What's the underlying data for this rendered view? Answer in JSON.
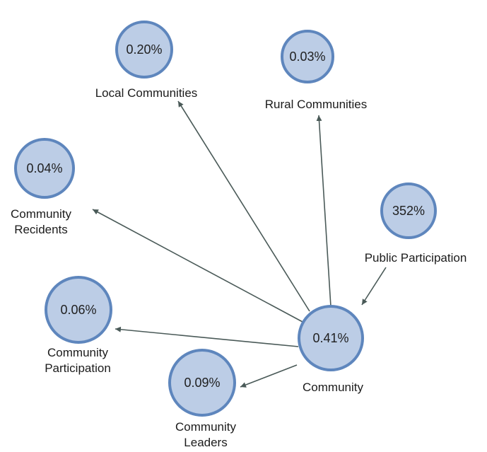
{
  "nodes": [
    {
      "id": "local-communities",
      "value": "0.20%",
      "label": [
        "Local Communities"
      ]
    },
    {
      "id": "rural-communities",
      "value": "0.03%",
      "label": [
        "Rural Communities"
      ]
    },
    {
      "id": "community-recidents",
      "value": "0.04%",
      "label": [
        "Community",
        "Recidents"
      ]
    },
    {
      "id": "public-participation",
      "value": "352%",
      "label": [
        "Public Participation"
      ]
    },
    {
      "id": "community-participation",
      "value": "0.06%",
      "label": [
        "Community",
        "Participation"
      ]
    },
    {
      "id": "community",
      "value": "0.41%",
      "label": [
        "Community"
      ]
    },
    {
      "id": "community-leaders",
      "value": "0.09%",
      "label": [
        "Community",
        "Leaders"
      ]
    }
  ],
  "edges": [
    {
      "from": "community",
      "to": "local-communities"
    },
    {
      "from": "community",
      "to": "rural-communities"
    },
    {
      "from": "community",
      "to": "community-recidents"
    },
    {
      "from": "community",
      "to": "community-participation"
    },
    {
      "from": "community",
      "to": "community-leaders"
    },
    {
      "from": "public-participation",
      "to": "community"
    }
  ],
  "colors": {
    "node_fill": "#bccde6",
    "node_stroke": "#5e86bd",
    "edge": "#4a5a58",
    "text": "#1b1b1b"
  }
}
